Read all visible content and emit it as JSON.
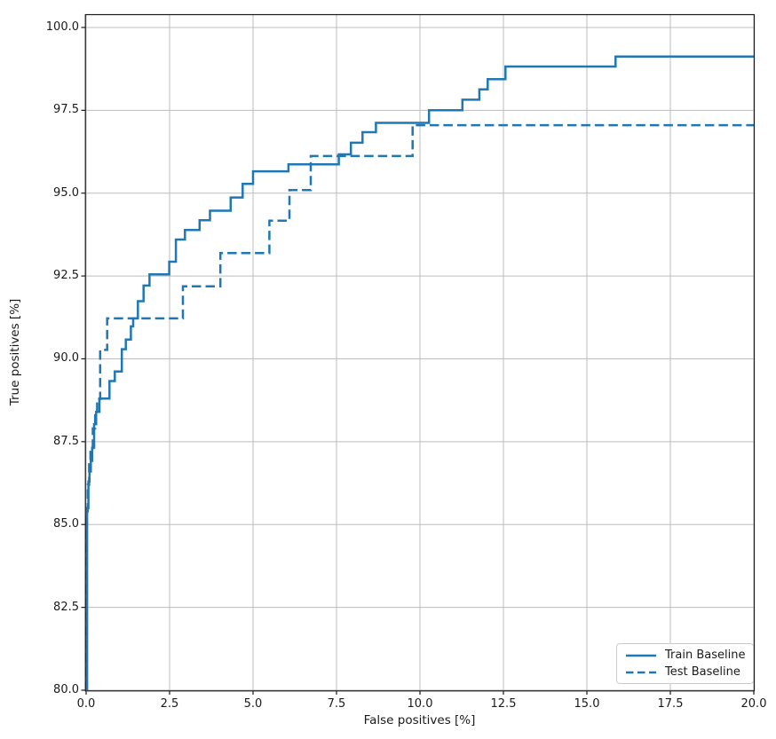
{
  "chart_data": {
    "type": "line",
    "subtype": "step-roc-curve",
    "title": "",
    "xlabel": "False positives [%]",
    "ylabel": "True positives [%]",
    "xlim": [
      0,
      20
    ],
    "ylim": [
      80,
      100.4
    ],
    "xticks": [
      0.0,
      2.5,
      5.0,
      7.5,
      10.0,
      12.5,
      15.0,
      17.5,
      20.0
    ],
    "yticks": [
      80.0,
      82.5,
      85.0,
      87.5,
      90.0,
      92.5,
      95.0,
      97.5,
      100.0
    ],
    "grid": true,
    "legend_position": "lower right",
    "series": [
      {
        "name": "Train Baseline",
        "style": "solid",
        "color": "#1f77b4",
        "linewidth": 2.5,
        "start": [
          0.03,
          80.0
        ],
        "steps": [
          [
            0.03,
            85.5
          ],
          [
            0.07,
            86.3
          ],
          [
            0.1,
            86.6
          ],
          [
            0.14,
            86.92
          ],
          [
            0.18,
            87.32
          ],
          [
            0.24,
            88.03
          ],
          [
            0.3,
            88.4
          ],
          [
            0.4,
            88.8
          ],
          [
            0.7,
            89.33
          ],
          [
            0.86,
            89.62
          ],
          [
            1.07,
            90.29
          ],
          [
            1.19,
            90.58
          ],
          [
            1.34,
            90.98
          ],
          [
            1.41,
            91.22
          ],
          [
            1.55,
            91.74
          ],
          [
            1.72,
            92.21
          ],
          [
            1.9,
            92.55
          ],
          [
            2.49,
            92.93
          ],
          [
            2.69,
            93.6
          ],
          [
            2.96,
            93.89
          ],
          [
            3.4,
            94.18
          ],
          [
            3.71,
            94.47
          ],
          [
            4.33,
            94.87
          ],
          [
            4.69,
            95.28
          ],
          [
            5.0,
            95.66
          ],
          [
            6.06,
            95.87
          ],
          [
            7.57,
            96.17
          ],
          [
            7.93,
            96.52
          ],
          [
            8.28,
            96.84
          ],
          [
            8.68,
            97.12
          ],
          [
            10.27,
            97.5
          ],
          [
            11.27,
            97.82
          ],
          [
            11.78,
            98.13
          ],
          [
            12.03,
            98.44
          ],
          [
            12.56,
            98.82
          ],
          [
            15.86,
            99.12
          ],
          [
            20.0,
            99.12
          ]
        ]
      },
      {
        "name": "Test Baseline",
        "style": "dashed",
        "color": "#1f77b4",
        "linewidth": 2.5,
        "start": [
          0.02,
          80.0
        ],
        "steps": [
          [
            0.02,
            85.3
          ],
          [
            0.05,
            86.2
          ],
          [
            0.09,
            86.9
          ],
          [
            0.13,
            87.3
          ],
          [
            0.2,
            87.9
          ],
          [
            0.27,
            88.35
          ],
          [
            0.33,
            88.79
          ],
          [
            0.42,
            90.27
          ],
          [
            0.63,
            91.22
          ],
          [
            2.9,
            92.19
          ],
          [
            4.02,
            93.19
          ],
          [
            5.49,
            94.17
          ],
          [
            6.09,
            95.09
          ],
          [
            6.73,
            96.12
          ],
          [
            9.78,
            97.05
          ],
          [
            20.0,
            97.05
          ]
        ]
      }
    ]
  },
  "colors": {
    "line": "#1f77b4",
    "grid": "#bdbdbd",
    "spine": "#1a1a1a",
    "tick_text": "#1a1a1a",
    "background": "#ffffff",
    "legend_border": "#cccccc"
  }
}
